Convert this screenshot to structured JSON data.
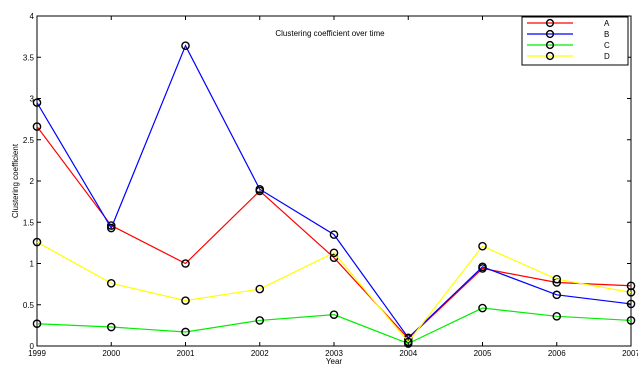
{
  "chart_data": {
    "type": "line",
    "title": "Clustering coefficient over time",
    "xlabel": "Year",
    "ylabel": "Clustering coefficient",
    "x": [
      "1999",
      "2000",
      "2001",
      "2002",
      "2003",
      "2004",
      "2005",
      "2006",
      "2007"
    ],
    "xlim": [
      1999,
      2007
    ],
    "ylim": [
      0,
      4
    ],
    "yticks": [
      "0",
      "0.5",
      "1",
      "1.5",
      "2",
      "2.5",
      "3",
      "3.5",
      "4"
    ],
    "grid": false,
    "legend_position": "top-right",
    "series": [
      {
        "name": "A",
        "color": "#ff0000",
        "values": [
          2.66,
          1.46,
          1.0,
          1.88,
          1.07,
          0.09,
          0.94,
          0.77,
          0.73
        ]
      },
      {
        "name": "B",
        "color": "#0000ff",
        "values": [
          2.95,
          1.43,
          3.64,
          1.9,
          1.35,
          0.1,
          0.96,
          0.62,
          0.51
        ]
      },
      {
        "name": "C",
        "color": "#00ee00",
        "values": [
          0.27,
          0.23,
          0.17,
          0.31,
          0.38,
          0.03,
          0.46,
          0.36,
          0.31
        ]
      },
      {
        "name": "D",
        "color": "#ffff00",
        "values": [
          1.26,
          0.76,
          0.55,
          0.69,
          1.13,
          0.05,
          1.21,
          0.81,
          0.65
        ]
      }
    ]
  }
}
